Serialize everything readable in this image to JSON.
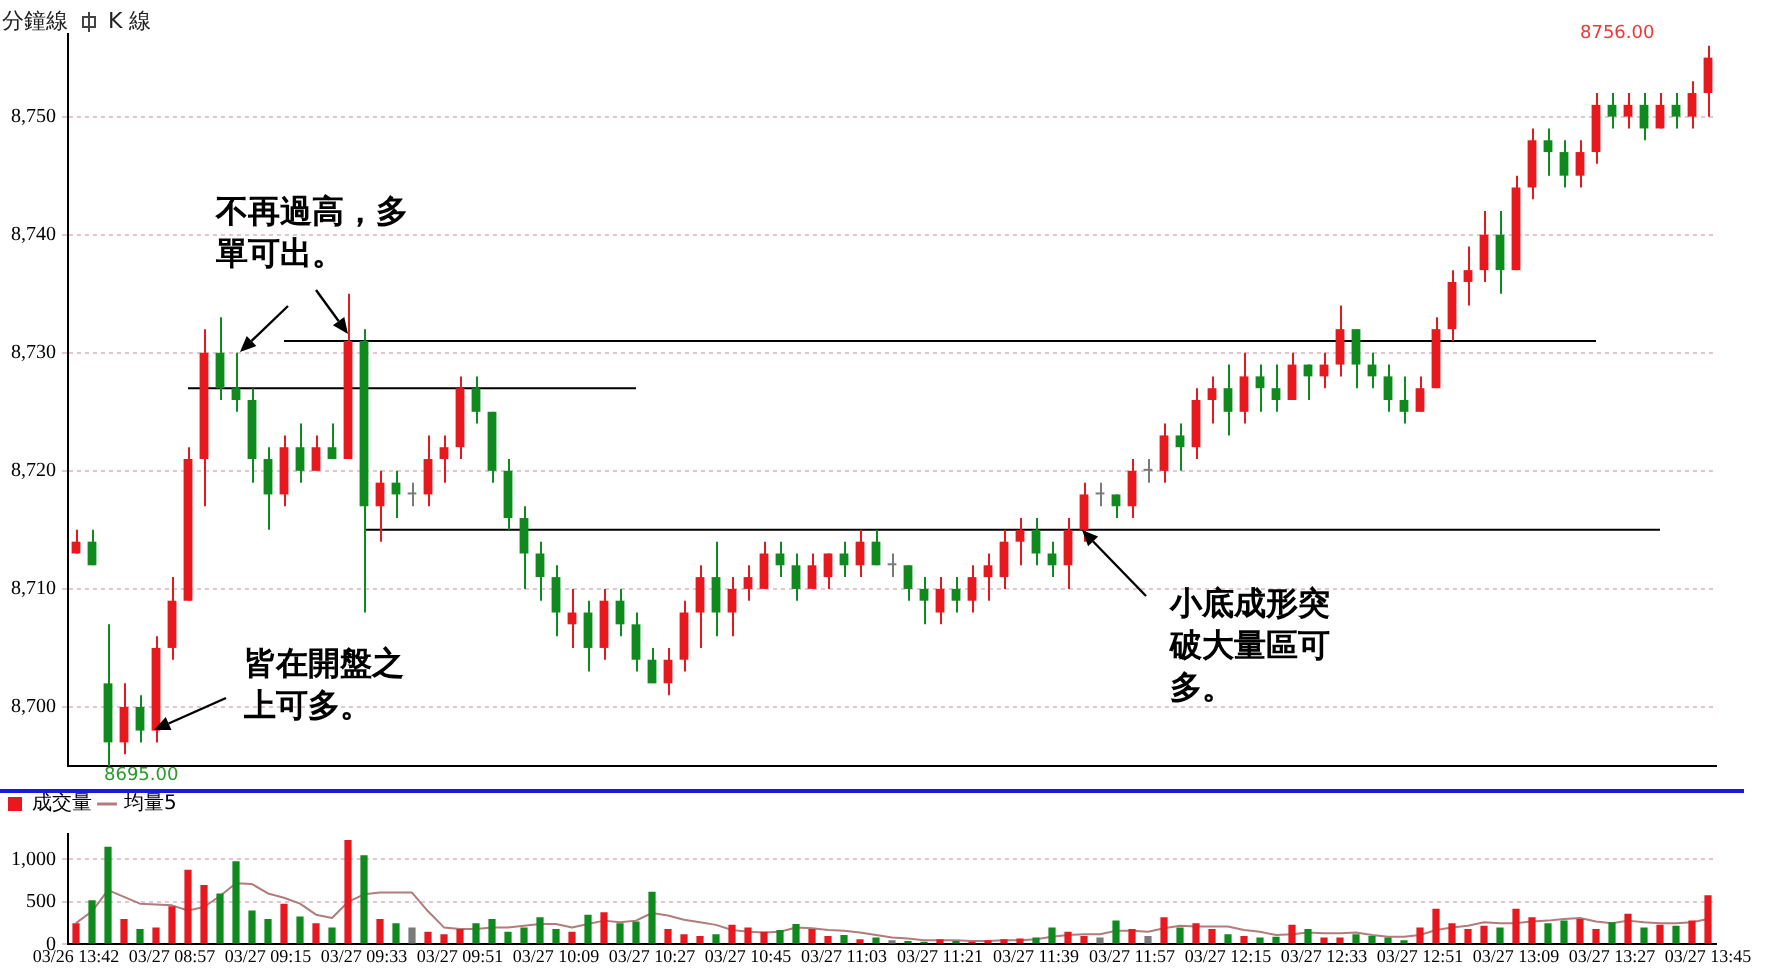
{
  "chart_data": [
    {
      "type": "candlestick",
      "tick_labels": "y",
      "grid": "y",
      "ylim": [
        8695,
        8757
      ],
      "yticks": [
        {
          "value": 8700,
          "label": "8,700"
        },
        {
          "value": 8710,
          "label": "8,710"
        },
        {
          "value": 8720,
          "label": "8,720"
        },
        {
          "value": 8730,
          "label": "8,730"
        },
        {
          "value": 8740,
          "label": "8,740"
        },
        {
          "value": 8750,
          "label": "8,750"
        }
      ],
      "categories": [
        null,
        null,
        null,
        null,
        null,
        null,
        null,
        null,
        null,
        null,
        null,
        null,
        null,
        null,
        null,
        null,
        null,
        null,
        null,
        null,
        null,
        null,
        null,
        null,
        null,
        null,
        null,
        null,
        null,
        null,
        null,
        null,
        null,
        null,
        null,
        null,
        null,
        null,
        null,
        null,
        null,
        null,
        null,
        null,
        null,
        null,
        null,
        null,
        null,
        null,
        null,
        null,
        null,
        null,
        null,
        null,
        null,
        null,
        null,
        null,
        null,
        null,
        null,
        null,
        null,
        null,
        null,
        null,
        null,
        null,
        null,
        null,
        null,
        null,
        null,
        null,
        null,
        null,
        null,
        null,
        null,
        null,
        null,
        null,
        null,
        null,
        null,
        null,
        null,
        null,
        null,
        null,
        null,
        null,
        null,
        null,
        null,
        null,
        null,
        null,
        null,
        null,
        null
      ],
      "ohlc": [
        [
          8713,
          8715,
          8713,
          8714
        ],
        [
          8714,
          8715,
          8712,
          8712
        ],
        [
          8702,
          8707,
          8695,
          8697
        ],
        [
          8697,
          8702,
          8696,
          8700
        ],
        [
          8700,
          8701,
          8697,
          8698
        ],
        [
          8698,
          8706,
          8697,
          8705
        ],
        [
          8705,
          8711,
          8704,
          8709
        ],
        [
          8709,
          8722,
          8709,
          8721
        ],
        [
          8721,
          8732,
          8717,
          8730
        ],
        [
          8730,
          8733,
          8726,
          8727
        ],
        [
          8727,
          8730,
          8725,
          8726
        ],
        [
          8726,
          8727,
          8719,
          8721
        ],
        [
          8721,
          8722,
          8715,
          8718
        ],
        [
          8718,
          8723,
          8717,
          8722
        ],
        [
          8722,
          8724,
          8719,
          8720
        ],
        [
          8720,
          8723,
          8720,
          8722
        ],
        [
          8722,
          8724,
          8721,
          8721
        ],
        [
          8721,
          8735,
          8721,
          8731
        ],
        [
          8731,
          8732,
          8708,
          8717
        ],
        [
          8717,
          8720,
          8714,
          8719
        ],
        [
          8719,
          8720,
          8716,
          8718
        ],
        [
          8718,
          8719,
          8717,
          8718
        ],
        [
          8718,
          8723,
          8717,
          8721
        ],
        [
          8721,
          8723,
          8719,
          8722
        ],
        [
          8722,
          8728,
          8721,
          8727
        ],
        [
          8727,
          8728,
          8724,
          8725
        ],
        [
          8725,
          8725,
          8719,
          8720
        ],
        [
          8720,
          8721,
          8715,
          8716
        ],
        [
          8716,
          8717,
          8710,
          8713
        ],
        [
          8713,
          8714,
          8709,
          8711
        ],
        [
          8711,
          8712,
          8706,
          8708
        ],
        [
          8707,
          8710,
          8705,
          8708
        ],
        [
          8708,
          8709,
          8703,
          8705
        ],
        [
          8705,
          8710,
          8704,
          8709
        ],
        [
          8709,
          8710,
          8706,
          8707
        ],
        [
          8707,
          8708,
          8703,
          8704
        ],
        [
          8704,
          8705,
          8702,
          8702
        ],
        [
          8702,
          8705,
          8701,
          8704
        ],
        [
          8704,
          8709,
          8703,
          8708
        ],
        [
          8708,
          8712,
          8705,
          8711
        ],
        [
          8711,
          8714,
          8706,
          8708
        ],
        [
          8708,
          8711,
          8706,
          8710
        ],
        [
          8710,
          8712,
          8709,
          8711
        ],
        [
          8710,
          8714,
          8710,
          8713
        ],
        [
          8713,
          8714,
          8711,
          8712
        ],
        [
          8712,
          8713,
          8709,
          8710
        ],
        [
          8710,
          8713,
          8710,
          8712
        ],
        [
          8711,
          8713,
          8710,
          8713
        ],
        [
          8713,
          8714,
          8711,
          8712
        ],
        [
          8712,
          8715,
          8711,
          8714
        ],
        [
          8714,
          8715,
          8712,
          8712
        ],
        [
          8712,
          8713,
          8711,
          8712
        ],
        [
          8712,
          8712,
          8709,
          8710
        ],
        [
          8710,
          8711,
          8707,
          8709
        ],
        [
          8708,
          8711,
          8707,
          8710
        ],
        [
          8710,
          8711,
          8708,
          8709
        ],
        [
          8709,
          8712,
          8708,
          8711
        ],
        [
          8711,
          8713,
          8709,
          8712
        ],
        [
          8711,
          8715,
          8710,
          8714
        ],
        [
          8714,
          8716,
          8712,
          8715
        ],
        [
          8715,
          8716,
          8712,
          8713
        ],
        [
          8713,
          8714,
          8711,
          8712
        ],
        [
          8712,
          8716,
          8710,
          8715
        ],
        [
          8715,
          8719,
          8714,
          8718
        ],
        [
          8718,
          8719,
          8717,
          8718
        ],
        [
          8718,
          8718,
          8716,
          8717
        ],
        [
          8717,
          8721,
          8716,
          8720
        ],
        [
          8720,
          8721,
          8719,
          8720
        ],
        [
          8720,
          8724,
          8719,
          8723
        ],
        [
          8723,
          8724,
          8720,
          8722
        ],
        [
          8722,
          8727,
          8721,
          8726
        ],
        [
          8726,
          8728,
          8724,
          8727
        ],
        [
          8727,
          8729,
          8723,
          8725
        ],
        [
          8725,
          8730,
          8724,
          8728
        ],
        [
          8728,
          8729,
          8725,
          8727
        ],
        [
          8727,
          8729,
          8725,
          8726
        ],
        [
          8726,
          8730,
          8726,
          8729
        ],
        [
          8729,
          8729,
          8726,
          8728
        ],
        [
          8728,
          8730,
          8727,
          8729
        ],
        [
          8729,
          8734,
          8728,
          8732
        ],
        [
          8732,
          8732,
          8727,
          8729
        ],
        [
          8729,
          8730,
          8727,
          8728
        ],
        [
          8728,
          8729,
          8725,
          8726
        ],
        [
          8726,
          8728,
          8724,
          8725
        ],
        [
          8725,
          8728,
          8725,
          8727
        ],
        [
          8727,
          8733,
          8727,
          8732
        ],
        [
          8732,
          8737,
          8731,
          8736
        ],
        [
          8736,
          8739,
          8734,
          8737
        ],
        [
          8737,
          8742,
          8736,
          8740
        ],
        [
          8740,
          8742,
          8735,
          8737
        ],
        [
          8737,
          8745,
          8737,
          8744
        ],
        [
          8744,
          8749,
          8743,
          8748
        ],
        [
          8748,
          8749,
          8745,
          8747
        ],
        [
          8747,
          8748,
          8744,
          8745
        ],
        [
          8745,
          8748,
          8744,
          8747
        ],
        [
          8747,
          8752,
          8746,
          8751
        ],
        [
          8751,
          8752,
          8749,
          8750
        ],
        [
          8750,
          8752,
          8749,
          8751
        ],
        [
          8751,
          8752,
          8748,
          8749
        ],
        [
          8749,
          8752,
          8749,
          8751
        ],
        [
          8751,
          8752,
          8749,
          8750
        ],
        [
          8750,
          8753,
          8749,
          8752
        ],
        [
          8752,
          8756,
          8750,
          8755
        ]
      ],
      "colors": [
        "#e8191e",
        "#0f8a1e",
        "#0f8a1e",
        "#e8191e",
        "#0f8a1e",
        "#e8191e",
        "#e8191e",
        "#e8191e",
        "#e8191e",
        "#0f8a1e",
        "#0f8a1e",
        "#0f8a1e",
        "#0f8a1e",
        "#e8191e",
        "#0f8a1e",
        "#e8191e",
        "#0f8a1e",
        "#e8191e",
        "#0f8a1e",
        "#e8191e",
        "#0f8a1e",
        "#7a7a7a",
        "#e8191e",
        "#e8191e",
        "#e8191e",
        "#0f8a1e",
        "#0f8a1e",
        "#0f8a1e",
        "#0f8a1e",
        "#0f8a1e",
        "#0f8a1e",
        "#e8191e",
        "#0f8a1e",
        "#e8191e",
        "#0f8a1e",
        "#0f8a1e",
        "#0f8a1e",
        "#e8191e",
        "#e8191e",
        "#e8191e",
        "#0f8a1e",
        "#e8191e",
        "#e8191e",
        "#e8191e",
        "#0f8a1e",
        "#0f8a1e",
        "#e8191e",
        "#e8191e",
        "#0f8a1e",
        "#e8191e",
        "#0f8a1e",
        "#7a7a7a",
        "#0f8a1e",
        "#0f8a1e",
        "#e8191e",
        "#0f8a1e",
        "#e8191e",
        "#e8191e",
        "#e8191e",
        "#e8191e",
        "#0f8a1e",
        "#0f8a1e",
        "#e8191e",
        "#e8191e",
        "#7a7a7a",
        "#0f8a1e",
        "#e8191e",
        "#7a7a7a",
        "#e8191e",
        "#0f8a1e",
        "#e8191e",
        "#e8191e",
        "#0f8a1e",
        "#e8191e",
        "#0f8a1e",
        "#0f8a1e",
        "#e8191e",
        "#0f8a1e",
        "#e8191e",
        "#e8191e",
        "#0f8a1e",
        "#0f8a1e",
        "#0f8a1e",
        "#0f8a1e",
        "#e8191e",
        "#e8191e",
        "#e8191e",
        "#e8191e",
        "#e8191e",
        "#0f8a1e",
        "#e8191e",
        "#e8191e",
        "#0f8a1e",
        "#0f8a1e",
        "#e8191e",
        "#e8191e",
        "#0f8a1e",
        "#e8191e",
        "#0f8a1e",
        "#e8191e",
        "#0f8a1e",
        "#e8191e",
        "#e8191e"
      ],
      "series": [
        {
          "type": "line",
          "color": "#000000",
          "values": [
            null,
            null,
            null,
            null,
            null,
            null,
            null,
            8727,
            8727,
            8727,
            8727,
            8727,
            8727,
            8727,
            8727,
            8727,
            8727,
            8727,
            8727,
            8727,
            8727,
            8727,
            8727,
            8727,
            8727,
            8727,
            8727,
            8727,
            8727,
            8727,
            8727,
            8727,
            8727,
            8727,
            8727,
            8727,
            null,
            null,
            null,
            null,
            null,
            null,
            null,
            null,
            null,
            null,
            null,
            null,
            null,
            null,
            null,
            null,
            null,
            null,
            null,
            null,
            null,
            null,
            null,
            null,
            null,
            null,
            null,
            null,
            null,
            null,
            null,
            null,
            null,
            null,
            null,
            null,
            null,
            null,
            null,
            null,
            null,
            null,
            null,
            null,
            null,
            null,
            null,
            null,
            null,
            null,
            null,
            null,
            null,
            null,
            null,
            null,
            null,
            null,
            null,
            null,
            null,
            null,
            null,
            null,
            null,
            null,
            null
          ]
        },
        {
          "type": "line",
          "color": "#000000",
          "values": [
            null,
            null,
            null,
            null,
            null,
            null,
            null,
            null,
            null,
            null,
            null,
            null,
            null,
            8731,
            8731,
            8731,
            8731,
            8731,
            8731,
            8731,
            8731,
            8731,
            8731,
            8731,
            8731,
            8731,
            8731,
            8731,
            8731,
            8731,
            8731,
            8731,
            8731,
            8731,
            8731,
            8731,
            8731,
            8731,
            8731,
            8731,
            8731,
            8731,
            8731,
            8731,
            8731,
            8731,
            8731,
            8731,
            8731,
            8731,
            8731,
            8731,
            8731,
            8731,
            8731,
            8731,
            8731,
            8731,
            8731,
            8731,
            8731,
            8731,
            8731,
            8731,
            8731,
            8731,
            8731,
            8731,
            8731,
            8731,
            8731,
            8731,
            8731,
            8731,
            8731,
            8731,
            8731,
            8731,
            8731,
            8731,
            8731,
            8731,
            8731,
            8731,
            8731,
            8731,
            8731,
            8731,
            8731,
            8731,
            8731,
            8731,
            8731,
            8731,
            8731,
            8731,
            null,
            null,
            null,
            null,
            null,
            null,
            null
          ]
        },
        {
          "type": "line",
          "color": "#000000",
          "values": [
            null,
            null,
            null,
            null,
            null,
            null,
            null,
            null,
            null,
            null,
            null,
            null,
            null,
            null,
            null,
            null,
            null,
            null,
            8715,
            8715,
            8715,
            8715,
            8715,
            8715,
            8715,
            8715,
            8715,
            8715,
            8715,
            8715,
            8715,
            8715,
            8715,
            8715,
            8715,
            8715,
            8715,
            8715,
            8715,
            8715,
            8715,
            8715,
            8715,
            8715,
            8715,
            8715,
            8715,
            8715,
            8715,
            8715,
            8715,
            8715,
            8715,
            8715,
            8715,
            8715,
            8715,
            8715,
            8715,
            8715,
            8715,
            8715,
            8715,
            8715,
            8715,
            8715,
            8715,
            8715,
            8715,
            8715,
            8715,
            8715,
            8715,
            8715,
            8715,
            8715,
            8715,
            8715,
            8715,
            8715,
            8715,
            8715,
            8715,
            8715,
            8715,
            8715,
            8715,
            8715,
            8715,
            8715,
            8715,
            8715,
            8715,
            8715,
            8715,
            8715,
            8715,
            8715,
            8715,
            8715,
            null,
            null,
            null
          ]
        }
      ],
      "annotations": [
        "分鐘線",
        "K 線",
        "不再過高，多單可出。",
        "皆在開盤之上可多。",
        "小底成形突破大量區可多。",
        "8695.00",
        "8756.00"
      ]
    },
    {
      "type": "bar",
      "grid": "y",
      "legend": "top left",
      "ylim": [
        0,
        1300
      ],
      "yticks": [
        0,
        500,
        {
          "value": 1000,
          "label": "1,000"
        }
      ],
      "categories": [
        "03/26 13:42",
        null,
        null,
        null,
        null,
        null,
        "03/27 08:57",
        null,
        null,
        null,
        null,
        null,
        "03/27 09:15",
        null,
        null,
        null,
        null,
        null,
        "03/27 09:33",
        null,
        null,
        null,
        null,
        null,
        "03/27 09:51",
        null,
        null,
        null,
        null,
        null,
        "03/27 10:09",
        null,
        null,
        null,
        null,
        null,
        "03/27 10:27",
        null,
        null,
        null,
        null,
        null,
        "03/27 10:45",
        null,
        null,
        null,
        null,
        null,
        "03/27 11:03",
        null,
        null,
        null,
        null,
        null,
        "03/27 11:21",
        null,
        null,
        null,
        null,
        null,
        "03/27 11:39",
        null,
        null,
        null,
        null,
        null,
        "03/27 11:57",
        null,
        null,
        null,
        null,
        null,
        "03/27 12:15",
        null,
        null,
        null,
        null,
        null,
        "03/27 12:33",
        null,
        null,
        null,
        null,
        null,
        "03/27 12:51",
        null,
        null,
        null,
        null,
        null,
        "03/27 13:09",
        null,
        null,
        null,
        null,
        null,
        "03/27 13:27",
        null,
        null,
        null,
        null,
        null,
        "03/27 13:45"
      ],
      "series": [
        {
          "name": "成交量",
          "values": [
            250,
            520,
            1150,
            300,
            180,
            200,
            450,
            880,
            700,
            600,
            980,
            400,
            300,
            480,
            330,
            250,
            200,
            1230,
            1050,
            300,
            250,
            200,
            150,
            120,
            180,
            250,
            300,
            150,
            200,
            320,
            180,
            150,
            350,
            380,
            250,
            270,
            620,
            180,
            120,
            100,
            120,
            230,
            200,
            150,
            170,
            240,
            180,
            100,
            110,
            60,
            80,
            50,
            40,
            30,
            60,
            40,
            30,
            50,
            60,
            70,
            80,
            200,
            150,
            100,
            80,
            280,
            180,
            100,
            320,
            200,
            250,
            180,
            120,
            100,
            80,
            90,
            230,
            180,
            80,
            80,
            120,
            100,
            80,
            50,
            200,
            420,
            250,
            180,
            220,
            200,
            420,
            320,
            250,
            280,
            300,
            180,
            260,
            360,
            200,
            230,
            220,
            280,
            580
          ],
          "colors": [
            "#e8191e",
            "#0f8a1e",
            "#0f8a1e",
            "#e8191e",
            "#0f8a1e",
            "#e8191e",
            "#e8191e",
            "#e8191e",
            "#e8191e",
            "#0f8a1e",
            "#0f8a1e",
            "#0f8a1e",
            "#0f8a1e",
            "#e8191e",
            "#0f8a1e",
            "#e8191e",
            "#0f8a1e",
            "#e8191e",
            "#0f8a1e",
            "#e8191e",
            "#0f8a1e",
            "#7a7a7a",
            "#e8191e",
            "#e8191e",
            "#e8191e",
            "#0f8a1e",
            "#0f8a1e",
            "#0f8a1e",
            "#0f8a1e",
            "#0f8a1e",
            "#0f8a1e",
            "#e8191e",
            "#0f8a1e",
            "#e8191e",
            "#0f8a1e",
            "#0f8a1e",
            "#0f8a1e",
            "#e8191e",
            "#e8191e",
            "#e8191e",
            "#0f8a1e",
            "#e8191e",
            "#e8191e",
            "#e8191e",
            "#0f8a1e",
            "#0f8a1e",
            "#e8191e",
            "#e8191e",
            "#0f8a1e",
            "#e8191e",
            "#0f8a1e",
            "#7a7a7a",
            "#0f8a1e",
            "#0f8a1e",
            "#e8191e",
            "#0f8a1e",
            "#e8191e",
            "#e8191e",
            "#e8191e",
            "#e8191e",
            "#0f8a1e",
            "#0f8a1e",
            "#e8191e",
            "#e8191e",
            "#7a7a7a",
            "#0f8a1e",
            "#e8191e",
            "#7a7a7a",
            "#e8191e",
            "#0f8a1e",
            "#e8191e",
            "#e8191e",
            "#0f8a1e",
            "#e8191e",
            "#0f8a1e",
            "#0f8a1e",
            "#e8191e",
            "#0f8a1e",
            "#e8191e",
            "#e8191e",
            "#0f8a1e",
            "#0f8a1e",
            "#0f8a1e",
            "#0f8a1e",
            "#e8191e",
            "#e8191e",
            "#e8191e",
            "#e8191e",
            "#e8191e",
            "#0f8a1e",
            "#e8191e",
            "#e8191e",
            "#0f8a1e",
            "#0f8a1e",
            "#e8191e",
            "#e8191e",
            "#0f8a1e",
            "#e8191e",
            "#0f8a1e",
            "#e8191e",
            "#0f8a1e",
            "#e8191e",
            "#e8191e"
          ]
        },
        {
          "name": "均量5",
          "type": "line",
          "color": "#b07c7c",
          "values": [
            250,
            390,
            640,
            560,
            480,
            470,
            460,
            400,
            440,
            570,
            720,
            710,
            600,
            550,
            480,
            350,
            310,
            500,
            590,
            610,
            610,
            610,
            390,
            200,
            180,
            180,
            200,
            200,
            220,
            240,
            240,
            200,
            240,
            280,
            260,
            280,
            370,
            340,
            290,
            260,
            230,
            170,
            150,
            140,
            150,
            200,
            190,
            170,
            160,
            140,
            110,
            80,
            70,
            50,
            50,
            50,
            40,
            40,
            50,
            50,
            60,
            90,
            110,
            120,
            120,
            160,
            160,
            150,
            190,
            220,
            210,
            210,
            210,
            170,
            150,
            110,
            120,
            140,
            130,
            130,
            140,
            110,
            90,
            90,
            110,
            170,
            200,
            220,
            260,
            250,
            250,
            270,
            280,
            300,
            310,
            270,
            250,
            280,
            260,
            250,
            250,
            260,
            300
          ]
        }
      ]
    }
  ]
}
